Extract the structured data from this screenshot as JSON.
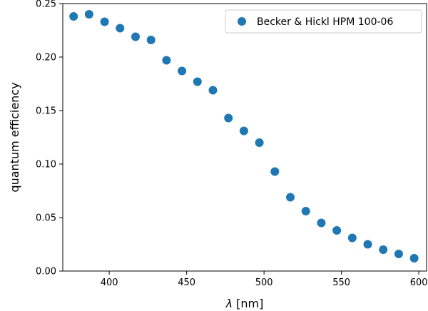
{
  "chart_data": {
    "type": "scatter",
    "title": "",
    "xlabel_symbol": "λ",
    "xlabel_unit": " [nm]",
    "ylabel": "quantum efficiency",
    "xlim": [
      370,
      605
    ],
    "ylim": [
      0.0,
      0.25
    ],
    "xticks": [
      400,
      450,
      500,
      550,
      600
    ],
    "xtick_labels": [
      "400",
      "450",
      "500",
      "550",
      "600"
    ],
    "yticks": [
      0.0,
      0.05,
      0.1,
      0.15,
      0.2,
      0.25
    ],
    "ytick_labels": [
      "0.00",
      "0.05",
      "0.10",
      "0.15",
      "0.20",
      "0.25"
    ],
    "grid": false,
    "legend_position": "top-right",
    "series": [
      {
        "name": "Becker & Hickl HPM 100-06",
        "color": "#1f77b4",
        "x": [
          377,
          387,
          397,
          407,
          417,
          427,
          437,
          447,
          457,
          467,
          477,
          487,
          497,
          507,
          517,
          527,
          537,
          547,
          557,
          567,
          577,
          587,
          597
        ],
        "y": [
          0.238,
          0.24,
          0.233,
          0.227,
          0.219,
          0.216,
          0.197,
          0.187,
          0.177,
          0.169,
          0.143,
          0.131,
          0.12,
          0.093,
          0.069,
          0.056,
          0.045,
          0.038,
          0.031,
          0.025,
          0.02,
          0.016,
          0.012
        ]
      }
    ]
  }
}
